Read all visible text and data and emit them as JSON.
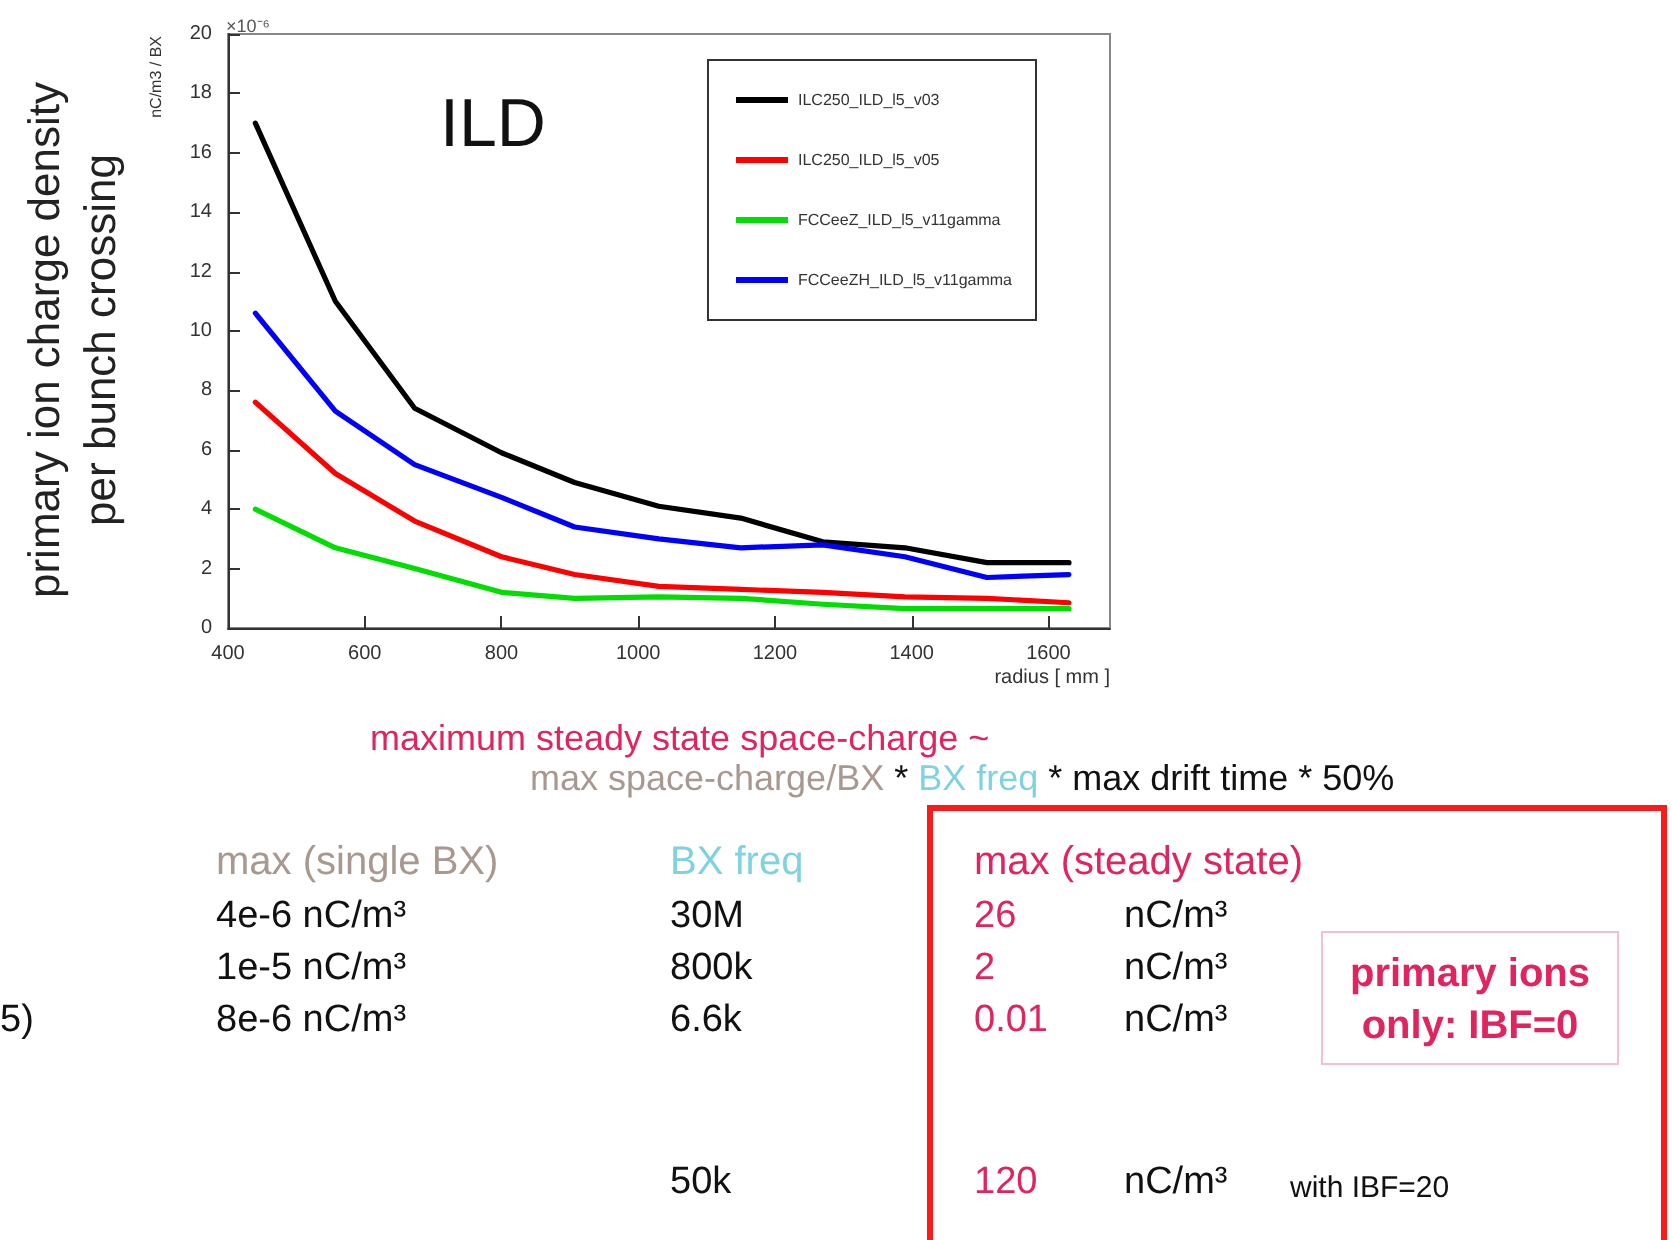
{
  "chart_data": {
    "type": "line",
    "title": "ILD",
    "xlabel": "radius [ mm ]",
    "ylabel": "nC/m3 / BX",
    "x": [
      440,
      557,
      673,
      800,
      907,
      1030,
      1150,
      1270,
      1390,
      1510,
      1630
    ],
    "series": [
      {
        "name": "ILC250_ILD_l5_v03",
        "color": "#000000",
        "values": [
          17,
          11,
          7.4,
          5.9,
          4.9,
          4.1,
          3.7,
          2.9,
          2.7,
          2.2,
          2.2
        ]
      },
      {
        "name": "ILC250_ILD_l5_v05",
        "color": "#ff0000",
        "values": [
          7.6,
          5.2,
          3.6,
          2.4,
          1.8,
          1.4,
          1.3,
          1.2,
          1.05,
          1.0,
          0.85
        ]
      },
      {
        "name": "FCCeeZ_ILD_l5_v11gamma",
        "color": "#00dd00",
        "values": [
          4.0,
          2.7,
          2.0,
          1.2,
          1.0,
          1.05,
          1.0,
          0.8,
          0.65,
          0.65,
          0.65
        ]
      },
      {
        "name": "FCCeeZH_ILD_l5_v11gamma",
        "color": "#0000ff",
        "values": [
          10.6,
          7.3,
          5.5,
          4.4,
          3.4,
          3.0,
          2.7,
          2.8,
          2.4,
          1.7,
          1.8
        ]
      }
    ],
    "xlim": [
      400,
      1690
    ],
    "xticks": [
      400,
      600,
      800,
      1000,
      1200,
      1400,
      1600
    ],
    "ylim": [
      0,
      20
    ],
    "yticks": [
      0,
      2,
      4,
      6,
      8,
      10,
      12,
      14,
      16,
      18,
      20
    ],
    "grid": false,
    "legend": "top right",
    "marker": "none",
    "line_style": "solid",
    "annotations": [
      "×10⁻⁶",
      "primary ion charge density",
      "per bunch crossing",
      "maximum steady state space-charge ~",
      "max space-charge/BX",
      "*",
      "BX freq",
      "* max drift time * 50%",
      "max (single BX)",
      "BX freq",
      "max (steady state)",
      "4e-6 nC/m³",
      "30M",
      "26",
      "nC/m³",
      "1e-5 nC/m³",
      "800k",
      "2",
      "nC/m³",
      "5)",
      "8e-6 nC/m³",
      "6.6k",
      "0.01",
      "nC/m³",
      "50k",
      "120",
      "nC/m³",
      "with IBF=20",
      "primary ions\nonly: IBF=0"
    ]
  }
}
